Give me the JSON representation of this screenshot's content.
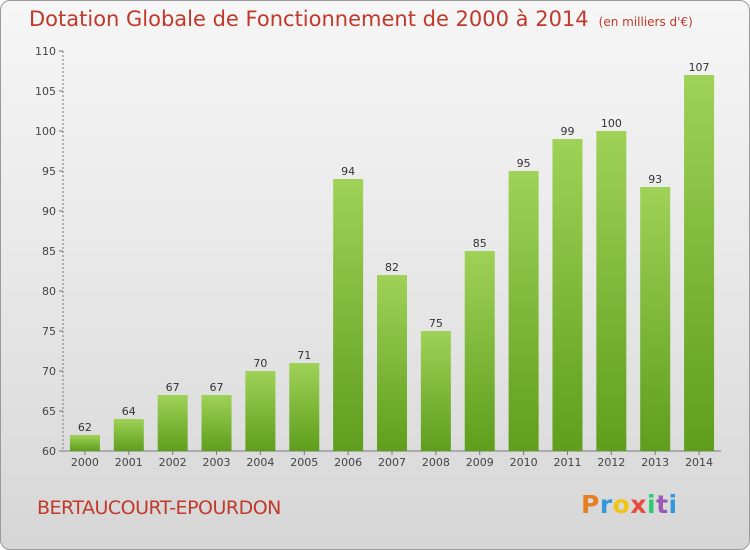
{
  "header": {
    "title": "Dotation Globale de Fonctionnement de 2000 à 2014",
    "subtitle": "(en milliers d'€)"
  },
  "footer": {
    "commune": "BERTAUCOURT-EPOURDON",
    "logo": "Proxiti"
  },
  "colors": {
    "title": "#c0392b",
    "bar_top": "#9fd257",
    "bar_bottom": "#5f9e1c"
  },
  "chart_data": {
    "type": "bar",
    "title": "Dotation Globale de Fonctionnement de 2000 à 2014",
    "subtitle": "(en milliers d'€)",
    "xlabel": "",
    "ylabel": "",
    "categories": [
      "2000",
      "2001",
      "2002",
      "2003",
      "2004",
      "2005",
      "2006",
      "2007",
      "2008",
      "2009",
      "2010",
      "2011",
      "2012",
      "2013",
      "2014"
    ],
    "values": [
      62,
      64,
      67,
      67,
      70,
      71,
      94,
      82,
      75,
      85,
      95,
      99,
      100,
      93,
      107
    ],
    "ylim": [
      60,
      110
    ],
    "yticks": [
      60,
      65,
      70,
      75,
      80,
      85,
      90,
      95,
      100,
      105,
      110
    ],
    "grid": false,
    "data_labels": true
  }
}
